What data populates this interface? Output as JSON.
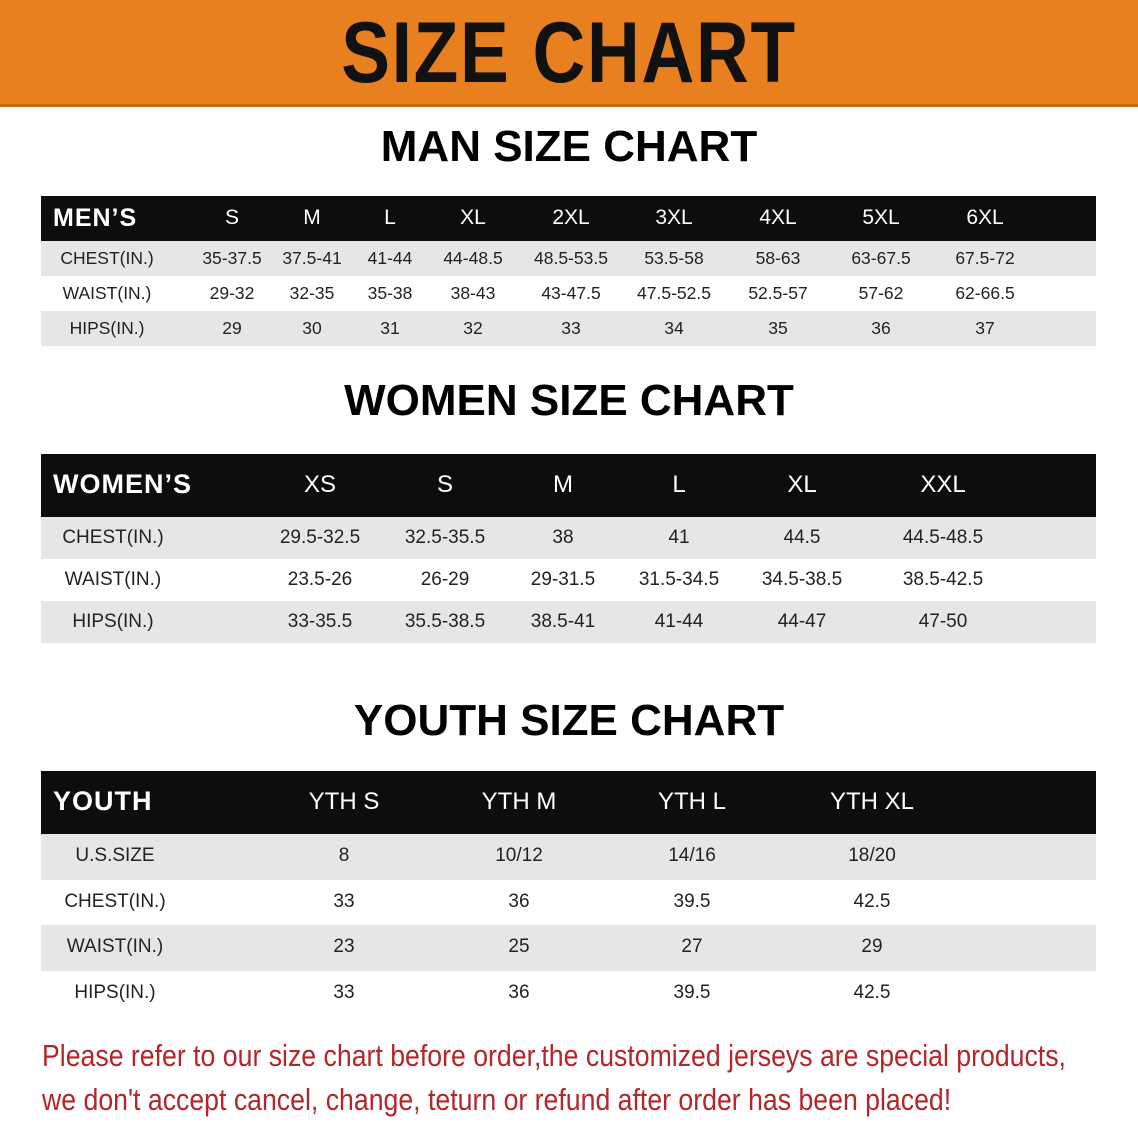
{
  "banner_title": "SIZE CHART",
  "colors": {
    "banner": "#e8801f",
    "header_bg": "#0d0d0d",
    "row_gray": "#e6e6e6",
    "note_text": "#b3262a"
  },
  "men": {
    "title": "MAN SIZE CHART",
    "header_label": "MEN’S",
    "sizes": [
      "S",
      "M",
      "L",
      "XL",
      "2XL",
      "3XL",
      "4XL",
      "5XL",
      "6XL"
    ],
    "rows": [
      {
        "label": "CHEST(IN.)",
        "values": [
          "35-37.5",
          "37.5-41",
          "41-44",
          "44-48.5",
          "48.5-53.5",
          "53.5-58",
          "58-63",
          "63-67.5",
          "67.5-72"
        ]
      },
      {
        "label": "WAIST(IN.)",
        "values": [
          "29-32",
          "32-35",
          "35-38",
          "38-43",
          "43-47.5",
          "47.5-52.5",
          "52.5-57",
          "57-62",
          "62-66.5"
        ]
      },
      {
        "label": "HIPS(IN.)",
        "values": [
          "29",
          "30",
          "31",
          "32",
          "33",
          "34",
          "35",
          "36",
          "37"
        ]
      }
    ]
  },
  "women": {
    "title": "WOMEN SIZE CHART",
    "header_label": "WOMEN’S",
    "sizes": [
      "XS",
      "S",
      "M",
      "L",
      "XL",
      "XXL"
    ],
    "rows": [
      {
        "label": "CHEST(IN.)",
        "values": [
          "29.5-32.5",
          "32.5-35.5",
          "38",
          "41",
          "44.5",
          "44.5-48.5"
        ]
      },
      {
        "label": "WAIST(IN.)",
        "values": [
          "23.5-26",
          "26-29",
          "29-31.5",
          "31.5-34.5",
          "34.5-38.5",
          "38.5-42.5"
        ]
      },
      {
        "label": "HIPS(IN.)",
        "values": [
          "33-35.5",
          "35.5-38.5",
          "38.5-41",
          "41-44",
          "44-47",
          "47-50"
        ]
      }
    ]
  },
  "youth": {
    "title": "YOUTH SIZE CHART",
    "header_label": "YOUTH",
    "sizes": [
      "YTH S",
      "YTH M",
      "YTH L",
      "YTH XL"
    ],
    "rows": [
      {
        "label": "U.S.SIZE",
        "values": [
          "8",
          "10/12",
          "14/16",
          "18/20"
        ]
      },
      {
        "label": "CHEST(IN.)",
        "values": [
          "33",
          "36",
          "39.5",
          "42.5"
        ]
      },
      {
        "label": "WAIST(IN.)",
        "values": [
          "23",
          "25",
          "27",
          "29"
        ]
      },
      {
        "label": "HIPS(IN.)",
        "values": [
          "33",
          "36",
          "39.5",
          "42.5"
        ]
      }
    ]
  },
  "notice": [
    "Please refer to our size chart before order,the customized jerseys are special products,",
    "we don't accept cancel, change, teturn or refund after order has been placed!"
  ]
}
